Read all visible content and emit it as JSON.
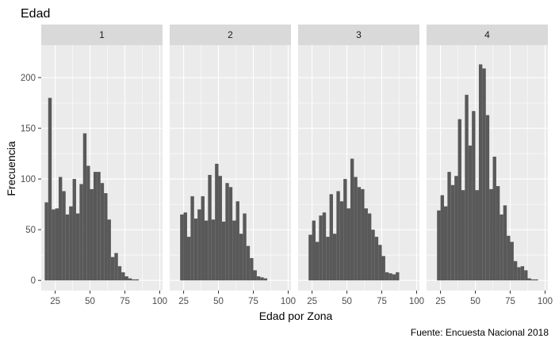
{
  "chart_data": {
    "type": "bar",
    "subtype": "faceted histogram",
    "title": "Edad",
    "xlabel": "Edad por Zona",
    "ylabel": "Frecuencia",
    "caption": "Fuente: Encuesta Nacional 2018",
    "xlim": [
      15,
      102
    ],
    "ylim": [
      -10,
      232
    ],
    "x_ticks": [
      25,
      50,
      75,
      100
    ],
    "y_ticks": [
      0,
      50,
      100,
      150,
      200
    ],
    "bin_width": 2.5,
    "grid": true,
    "bar_color": "#595959",
    "panel_bg": "#ebebeb",
    "strip_bg": "#d9d9d9",
    "facets": [
      {
        "label": "1",
        "bins_start": [
          17.5,
          20,
          22.5,
          25,
          27.5,
          30,
          32.5,
          35,
          37.5,
          40,
          42.5,
          45,
          47.5,
          50,
          52.5,
          55,
          57.5,
          60,
          62.5,
          65,
          67.5,
          70,
          72.5,
          75,
          77.5,
          80,
          82.5,
          85,
          87.5,
          90,
          92.5,
          95
        ],
        "counts": [
          77,
          180,
          70,
          71,
          102,
          88,
          65,
          73,
          100,
          66,
          95,
          145,
          113,
          90,
          107,
          107,
          96,
          86,
          60,
          23,
          27,
          14,
          8,
          4,
          2,
          1,
          1,
          0,
          0,
          0,
          0,
          0
        ]
      },
      {
        "label": "2",
        "bins_start": [
          17.5,
          20,
          22.5,
          25,
          27.5,
          30,
          32.5,
          35,
          37.5,
          40,
          42.5,
          45,
          47.5,
          50,
          52.5,
          55,
          57.5,
          60,
          62.5,
          65,
          67.5,
          70,
          72.5,
          75,
          77.5,
          80,
          82.5,
          85,
          87.5,
          90,
          92.5,
          95
        ],
        "counts": [
          0,
          0,
          65,
          67,
          43,
          83,
          61,
          70,
          83,
          59,
          104,
          60,
          115,
          103,
          58,
          96,
          92,
          59,
          78,
          46,
          66,
          34,
          22,
          10,
          4,
          3,
          2,
          0,
          0,
          0,
          0,
          0
        ]
      },
      {
        "label": "3",
        "bins_start": [
          17.5,
          20,
          22.5,
          25,
          27.5,
          30,
          32.5,
          35,
          37.5,
          40,
          42.5,
          45,
          47.5,
          50,
          52.5,
          55,
          57.5,
          60,
          62.5,
          65,
          67.5,
          70,
          72.5,
          75,
          77.5,
          80,
          82.5,
          85,
          87.5,
          90,
          92.5,
          95
        ],
        "counts": [
          0,
          0,
          45,
          59,
          38,
          64,
          67,
          43,
          85,
          46,
          88,
          78,
          100,
          71,
          120,
          102,
          92,
          90,
          71,
          66,
          50,
          43,
          35,
          24,
          8,
          7,
          6,
          8,
          0,
          0,
          0,
          0
        ]
      },
      {
        "label": "4",
        "bins_start": [
          17.5,
          20,
          22.5,
          25,
          27.5,
          30,
          32.5,
          35,
          37.5,
          40,
          42.5,
          45,
          47.5,
          50,
          52.5,
          55,
          57.5,
          60,
          62.5,
          65,
          67.5,
          70,
          72.5,
          75,
          77.5,
          80,
          82.5,
          85,
          87.5,
          90,
          92.5,
          95
        ],
        "counts": [
          0,
          0,
          69,
          84,
          73,
          107,
          94,
          103,
          159,
          89,
          183,
          133,
          167,
          89,
          213,
          209,
          163,
          90,
          122,
          93,
          65,
          74,
          44,
          38,
          19,
          13,
          14,
          10,
          2,
          1,
          1,
          0
        ]
      }
    ]
  }
}
